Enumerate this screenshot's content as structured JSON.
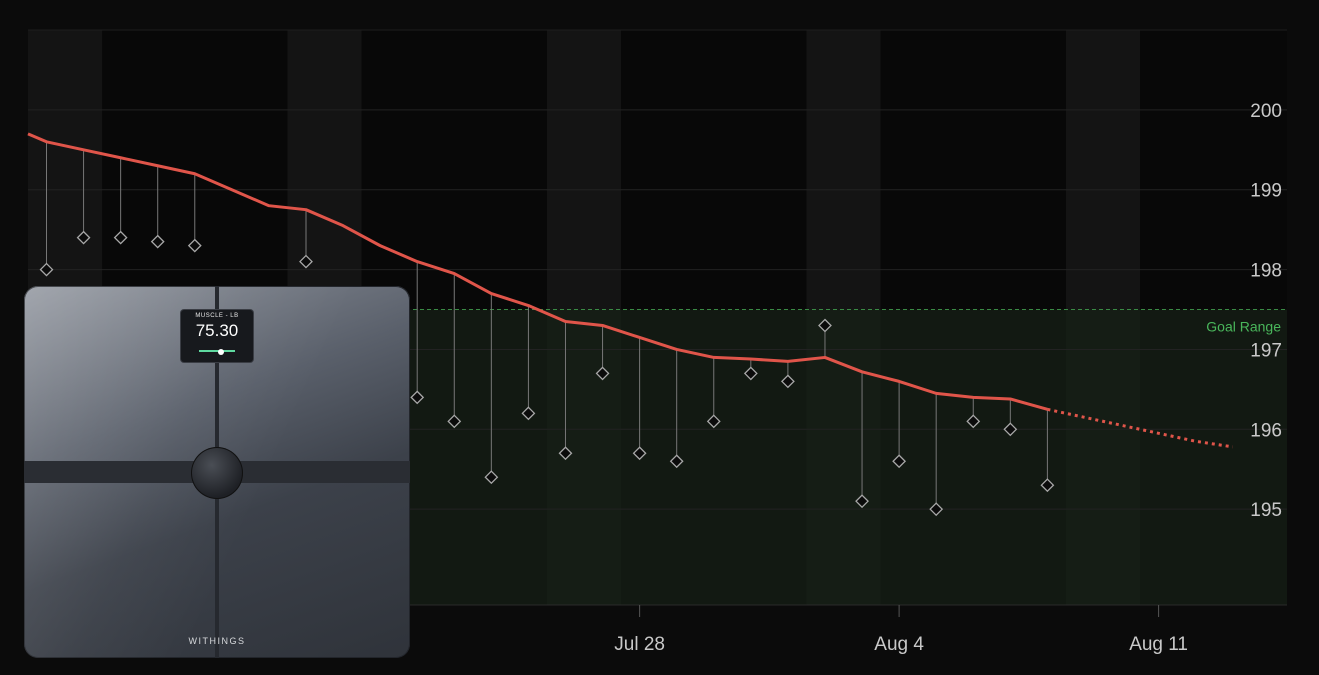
{
  "chart_data": {
    "type": "line",
    "x_ticks": [
      "Jul 28",
      "Aug 4",
      "Aug 11"
    ],
    "y_ticks": [
      195,
      196,
      197,
      198,
      199,
      200
    ],
    "ylim": [
      193.8,
      201
    ],
    "goal_range": {
      "label": "Goal Range",
      "upper": 197.5
    },
    "grid": true,
    "colors": {
      "trend": "#e0554a",
      "goal": "#49b65b",
      "marker": "#a8a8a8"
    },
    "x_dates": [
      "Jul 12",
      "Jul 13",
      "Jul 14",
      "Jul 15",
      "Jul 16",
      "Jul 17",
      "Jul 18",
      "Jul 19",
      "Jul 20",
      "Jul 21",
      "Jul 22",
      "Jul 23",
      "Jul 24",
      "Jul 25",
      "Jul 26",
      "Jul 27",
      "Jul 28",
      "Jul 29",
      "Jul 30",
      "Jul 31",
      "Aug 1",
      "Aug 2",
      "Aug 3",
      "Aug 4",
      "Aug 5",
      "Aug 6",
      "Aug 7",
      "Aug 8",
      "Aug 9",
      "Aug 10",
      "Aug 11",
      "Aug 12",
      "Aug 13"
    ],
    "series": [
      {
        "kind": "trend",
        "values": [
          199.6,
          199.5,
          199.4,
          199.3,
          199.2,
          199.0,
          198.8,
          198.75,
          198.55,
          198.3,
          198.1,
          197.95,
          197.7,
          197.55,
          197.35,
          197.3,
          197.15,
          197.0,
          196.9,
          196.88,
          196.85,
          196.9,
          196.72,
          196.6,
          196.45,
          196.4,
          196.38,
          196.25,
          null,
          null,
          null,
          null,
          null
        ]
      },
      {
        "kind": "projection",
        "values": [
          null,
          null,
          null,
          null,
          null,
          null,
          null,
          null,
          null,
          null,
          null,
          null,
          null,
          null,
          null,
          null,
          null,
          null,
          null,
          null,
          null,
          null,
          null,
          null,
          null,
          null,
          null,
          196.25,
          196.15,
          196.05,
          195.95,
          195.85,
          195.78
        ]
      },
      {
        "kind": "weighins",
        "values": [
          198.0,
          198.4,
          198.4,
          198.35,
          198.3,
          null,
          null,
          198.1,
          null,
          null,
          196.4,
          196.1,
          195.4,
          196.2,
          195.7,
          196.7,
          195.7,
          195.6,
          196.1,
          196.7,
          196.6,
          197.3,
          195.1,
          195.6,
          195.0,
          196.1,
          196.0,
          195.3,
          null,
          null,
          null,
          null,
          null
        ]
      }
    ]
  },
  "scale": {
    "display_header": "MUSCLE - LB",
    "display_value": "75.30",
    "brand": "WITHINGS"
  }
}
